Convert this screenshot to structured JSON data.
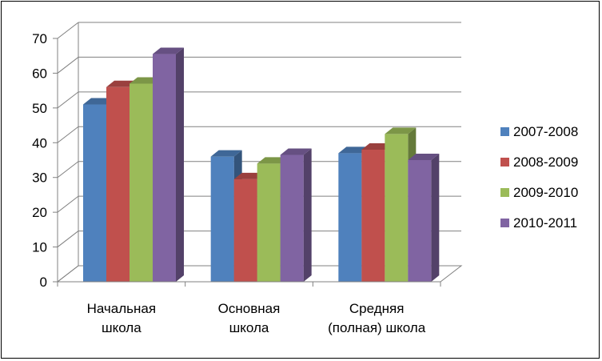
{
  "chart_data": {
    "type": "bar",
    "style": "3d-clustered-column",
    "categories": [
      [
        "Начальная",
        "школа"
      ],
      [
        "Основная",
        "школа"
      ],
      [
        "Средняя",
        "(полная) школа"
      ]
    ],
    "series": [
      {
        "name": "2007-2008",
        "color": "#4F81BD",
        "values": [
          51,
          36,
          37
        ]
      },
      {
        "name": "2008-2009",
        "color": "#C0504D",
        "values": [
          56,
          29.5,
          38
        ]
      },
      {
        "name": "2009-2010",
        "color": "#9BBB59",
        "values": [
          57,
          34,
          42.5
        ]
      },
      {
        "name": "2010-2011",
        "color": "#8064A2",
        "values": [
          65.5,
          36.5,
          35
        ]
      }
    ],
    "ylim": [
      0,
      70
    ],
    "yticks": [
      "0",
      "10",
      "20",
      "30",
      "40",
      "50",
      "60",
      "70"
    ],
    "grid": true,
    "legend_position": "right",
    "title": "",
    "xlabel": "",
    "ylabel": ""
  }
}
